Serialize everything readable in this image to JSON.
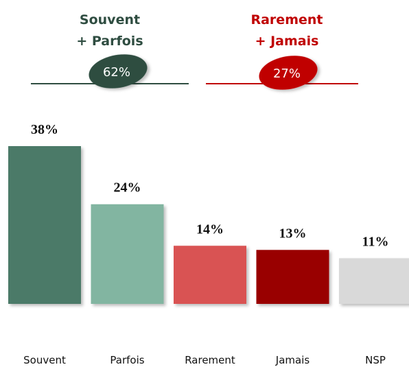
{
  "chart_data": {
    "type": "bar",
    "categories": [
      "Souvent",
      "Parfois",
      "Rarement",
      "Jamais",
      "NSP"
    ],
    "values": [
      38,
      24,
      14,
      13,
      11
    ],
    "value_labels": [
      "38%",
      "24%",
      "14%",
      "13%",
      "11%"
    ],
    "colors": [
      "#4b7a68",
      "#82b5a1",
      "#d95252",
      "#990000",
      "#d9d9d9"
    ],
    "groups": [
      {
        "label_lines": [
          "Souvent",
          "+ Parfois"
        ],
        "value": 62,
        "value_label": "62%",
        "color": "#2f4d41"
      },
      {
        "label_lines": [
          "Rarement",
          "+ Jamais"
        ],
        "value": 27,
        "value_label": "27%",
        "color": "#c00000"
      }
    ]
  }
}
